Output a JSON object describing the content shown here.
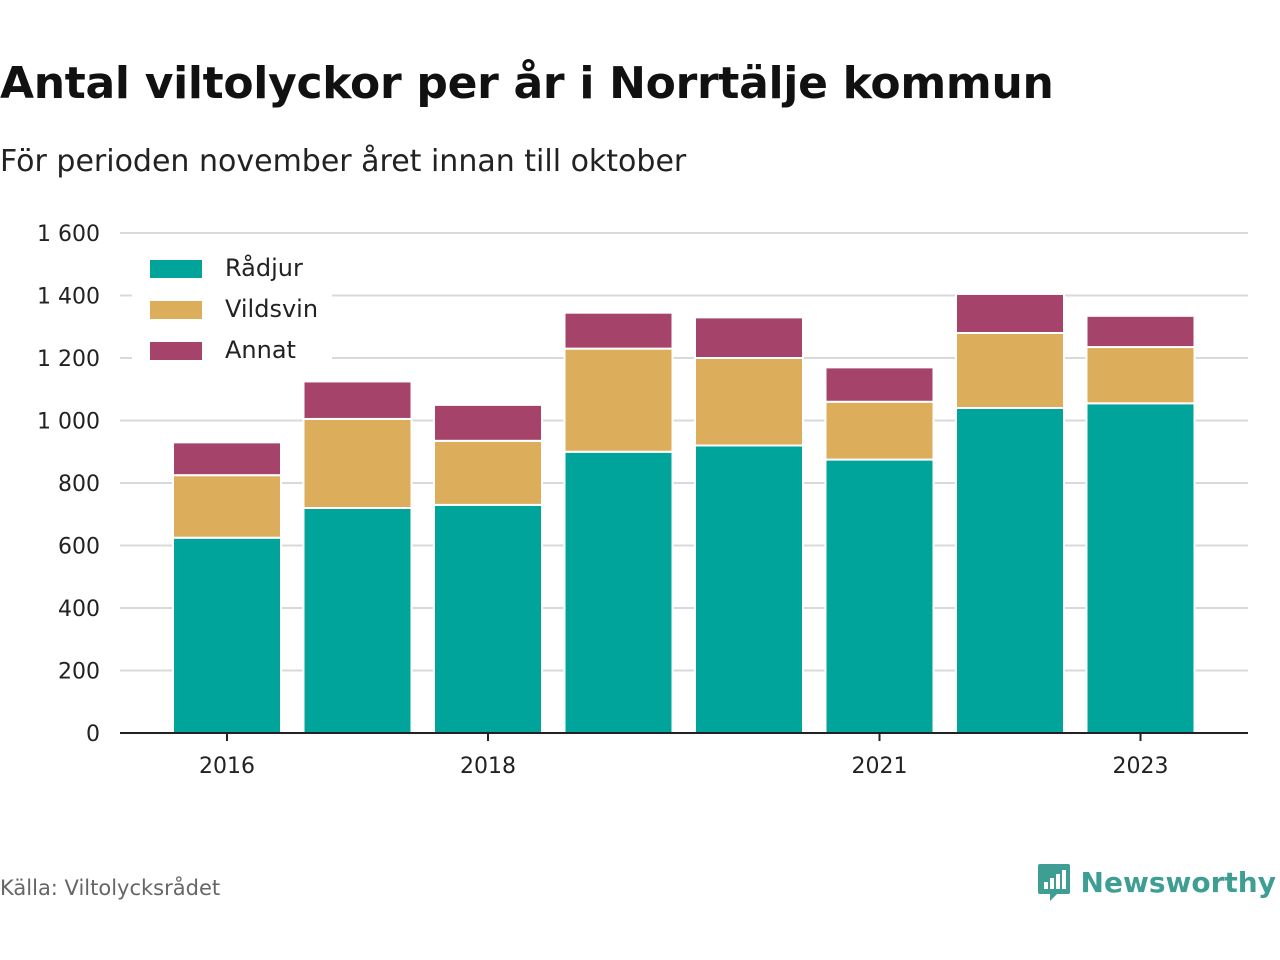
{
  "header": {
    "title": "Antal viltolyckor per år i Norrtälje kommun",
    "subtitle": "För perioden november året innan till oktober"
  },
  "footer": {
    "source": "Källa: Viltolycksrådet",
    "brand": "Newsworthy",
    "brand_icon": "bar-chart-speech-bubble-icon",
    "brand_color": "#3f9e94"
  },
  "chart_data": {
    "type": "bar",
    "stacked": true,
    "categories": [
      "2016",
      "2017",
      "2018",
      "2019",
      "2020",
      "2021",
      "2022",
      "2023"
    ],
    "x_tick_labels": [
      "2016",
      "",
      "2018",
      "",
      "",
      "2021",
      "",
      "2023"
    ],
    "series": [
      {
        "name": "Rådjur",
        "color": "#00a49a",
        "values": [
          625,
          720,
          730,
          900,
          920,
          875,
          1040,
          1055
        ]
      },
      {
        "name": "Vildsvin",
        "color": "#dcad5a",
        "values": [
          200,
          285,
          205,
          330,
          280,
          185,
          240,
          180
        ]
      },
      {
        "name": "Annat",
        "color": "#a6436a",
        "values": [
          105,
          120,
          115,
          115,
          130,
          110,
          125,
          100
        ]
      }
    ],
    "ylim": [
      0,
      1600
    ],
    "yticks": [
      0,
      200,
      400,
      600,
      800,
      1000,
      1200,
      1400,
      1600
    ],
    "ytick_labels": [
      "0",
      "200",
      "400",
      "600",
      "800",
      "1 000",
      "1 200",
      "1 400",
      "1 600"
    ],
    "xlabel": "",
    "ylabel": "",
    "grid": true,
    "legend_position": "top-left"
  }
}
